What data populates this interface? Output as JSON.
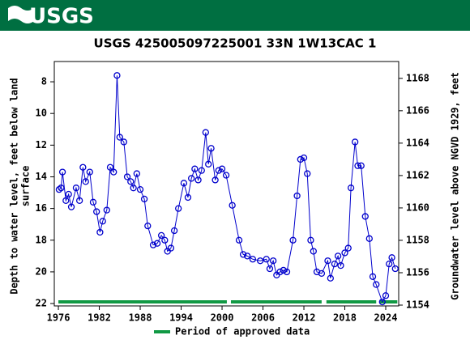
{
  "header": {
    "logo_text": "USGS"
  },
  "chart_data": {
    "type": "line",
    "title": "USGS 425005097225001  33N  1W13CAC 1",
    "y_label": [
      "Depth to water level, feet below land",
      "surface"
    ],
    "y2_label": "Groundwater level above NGVD 1929, feet",
    "legend_label": "Period of approved data",
    "color": "#0000cc",
    "approved_color": "#119944",
    "xlim": [
      1975.4,
      2025.9
    ],
    "xticks": [
      1976,
      1982,
      1988,
      1994,
      2000,
      2006,
      2012,
      2018,
      2024
    ],
    "ylim": [
      6.72,
      22.15
    ],
    "y_inverted": true,
    "yticks": [
      8,
      10,
      12,
      14,
      16,
      18,
      20,
      22
    ],
    "y2lim": [
      1153.95,
      1169.04
    ],
    "y2ticks": [
      1154,
      1156,
      1158,
      1160,
      1162,
      1164,
      1166,
      1168
    ],
    "x": [
      1976.1,
      1976.4,
      1976.6,
      1977.1,
      1977.5,
      1977.9,
      1978.6,
      1979.1,
      1979.6,
      1980.0,
      1980.6,
      1981.1,
      1981.6,
      1982.1,
      1982.5,
      1983.1,
      1983.6,
      1984.1,
      1984.6,
      1985.0,
      1985.6,
      1986.1,
      1986.6,
      1987.0,
      1987.5,
      1988.0,
      1988.6,
      1989.1,
      1989.9,
      1990.5,
      1991.1,
      1991.6,
      1992.0,
      1992.5,
      1993.0,
      1993.6,
      1994.4,
      1995.0,
      1995.5,
      1996.0,
      1996.5,
      1997.0,
      1997.6,
      1998.0,
      1998.4,
      1999.0,
      1999.5,
      2000.0,
      2000.6,
      2001.5,
      2002.5,
      2003.1,
      2003.7,
      2004.5,
      2005.6,
      2006.5,
      2007.0,
      2007.5,
      2008.0,
      2008.5,
      2009.0,
      2009.5,
      2010.4,
      2011.0,
      2011.5,
      2012.0,
      2012.5,
      2013.0,
      2013.4,
      2013.9,
      2014.6,
      2015.5,
      2015.9,
      2016.5,
      2017.0,
      2017.4,
      2018.0,
      2018.5,
      2018.9,
      2019.5,
      2019.9,
      2020.4,
      2021.0,
      2021.6,
      2022.1,
      2022.6,
      2023.5,
      2024.0,
      2024.5,
      2024.9,
      2025.4
    ],
    "values": [
      14.8,
      14.7,
      13.7,
      15.5,
      15.1,
      15.9,
      14.7,
      15.5,
      13.4,
      14.3,
      13.7,
      15.6,
      16.2,
      17.5,
      16.8,
      16.1,
      13.4,
      13.7,
      7.6,
      11.5,
      11.8,
      14.0,
      14.3,
      14.7,
      13.8,
      14.8,
      15.4,
      17.1,
      18.3,
      18.2,
      17.7,
      18.0,
      18.7,
      18.5,
      17.4,
      16.0,
      14.4,
      15.3,
      14.1,
      13.5,
      14.2,
      13.6,
      11.2,
      13.2,
      12.2,
      14.2,
      13.6,
      13.5,
      13.9,
      15.8,
      18.0,
      18.9,
      19.0,
      19.2,
      19.3,
      19.2,
      19.8,
      19.3,
      20.2,
      20.0,
      19.9,
      20.0,
      18.0,
      15.2,
      12.9,
      12.8,
      13.8,
      18.0,
      18.7,
      20.0,
      20.1,
      19.3,
      20.4,
      19.5,
      19.0,
      19.6,
      18.8,
      18.5,
      14.7,
      11.8,
      13.3,
      13.3,
      16.5,
      17.9,
      20.3,
      20.8,
      21.9,
      21.5,
      19.5,
      19.1,
      19.8
    ],
    "approved_periods": [
      [
        1976.0,
        2000.7
      ],
      [
        2001.3,
        2014.6
      ],
      [
        2015.3,
        2022.6
      ],
      [
        2023.1,
        2025.7
      ]
    ]
  }
}
